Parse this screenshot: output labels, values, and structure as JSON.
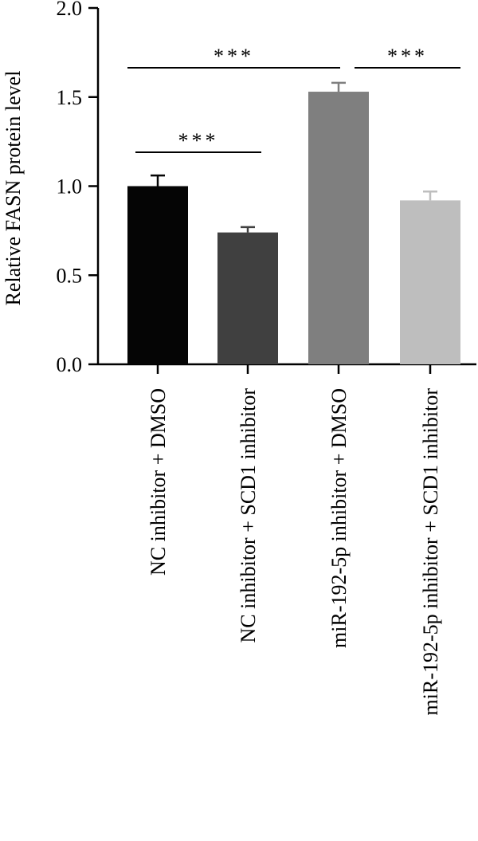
{
  "chart_data": {
    "type": "bar",
    "title": "",
    "xlabel": "",
    "ylabel": "Relative FASN protein level",
    "ylim": [
      0,
      2.0
    ],
    "yticks": [
      "0.0",
      "0.5",
      "1.0",
      "1.5",
      "2.0"
    ],
    "grid": false,
    "categories": [
      "NC inhibitor + DMSO",
      "NC inhibitor + SCD1 inhibitor",
      "miR-192-5p inhibitor + DMSO",
      "miR-192-5p inhibitor + SCD1 inhibitor"
    ],
    "values": [
      1.0,
      0.74,
      1.53,
      0.92
    ],
    "errors": [
      0.06,
      0.03,
      0.05,
      0.05
    ],
    "colors": [
      "#050505",
      "#404040",
      "#7f7f7f",
      "#bebebe"
    ],
    "significance": [
      {
        "from": 0,
        "to": 1,
        "label": "***"
      },
      {
        "from": 0,
        "to": 2,
        "label": "***"
      },
      {
        "from": 2,
        "to": 3,
        "label": "***"
      }
    ]
  }
}
